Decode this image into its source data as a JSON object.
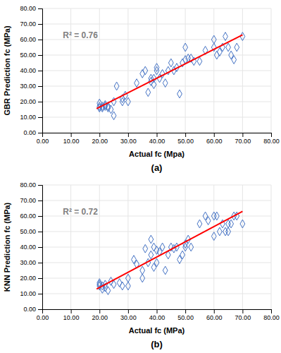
{
  "chart_data": [
    {
      "type": "scatter",
      "title": "(a)",
      "x_label": "Actual fc (Mpa)",
      "y_label": "GBR Prediction fc (MPa)",
      "annotations": [
        "R² = 0.76"
      ],
      "series": [
        {
          "type": "scatter",
          "marker": "diamond",
          "color": "#4472C4",
          "x": [
            20,
            20,
            20,
            21,
            21,
            22,
            22,
            23,
            23,
            24,
            25,
            25,
            26,
            28,
            28,
            29,
            30,
            33,
            35,
            36,
            37,
            38,
            38,
            39,
            39,
            40,
            40,
            41,
            42,
            43,
            44,
            45,
            46,
            47,
            48,
            49,
            50,
            50,
            51,
            52,
            53,
            55,
            57,
            60,
            60,
            61,
            62,
            63,
            64,
            65,
            66,
            67,
            68,
            70
          ],
          "values": [
            17,
            16,
            19,
            17,
            16,
            17,
            18,
            17,
            16,
            15,
            11,
            20,
            30,
            20,
            22,
            24,
            20,
            32,
            38,
            40,
            26,
            33,
            35,
            31,
            35,
            40,
            42,
            35,
            38,
            32,
            40,
            45,
            40,
            42,
            25,
            45,
            55,
            47,
            48,
            48,
            46,
            46,
            53,
            60,
            55,
            50,
            52,
            55,
            62,
            55,
            50,
            47,
            55,
            62
          ]
        },
        {
          "type": "line",
          "color": "#FF0000",
          "x": [
            19,
            70
          ],
          "values": [
            15.5,
            63
          ]
        }
      ],
      "xlim": [
        0,
        80
      ],
      "ylim": [
        0,
        80
      ],
      "xticks": [
        {
          "value": 0,
          "label": "0.00"
        },
        {
          "value": 10,
          "label": "10.00"
        },
        {
          "value": 20,
          "label": "20.00"
        },
        {
          "value": 30,
          "label": "30.00"
        },
        {
          "value": 40,
          "label": "40.00"
        },
        {
          "value": 50,
          "label": "50.00"
        },
        {
          "value": 60,
          "label": "60.00"
        },
        {
          "value": 70,
          "label": "70.00"
        },
        {
          "value": 80,
          "label": "80.00"
        }
      ],
      "yticks": [
        {
          "value": 0,
          "label": "0.00"
        },
        {
          "value": 10,
          "label": "10.00"
        },
        {
          "value": 20,
          "label": "20.00"
        },
        {
          "value": 30,
          "label": "30.00"
        },
        {
          "value": 40,
          "label": "40.00"
        },
        {
          "value": 50,
          "label": "50.00"
        },
        {
          "value": 60,
          "label": "60.00"
        },
        {
          "value": 70,
          "label": "70.00"
        },
        {
          "value": 80,
          "label": "80.00"
        }
      ],
      "grid": true
    },
    {
      "type": "scatter",
      "title": "(b)",
      "x_label": "Actual fc (MPa)",
      "y_label": "KNN Prediction fc (MPa)",
      "annotations": [
        "R² = 0.72"
      ],
      "series": [
        {
          "type": "scatter",
          "marker": "diamond",
          "color": "#4472C4",
          "x": [
            20,
            20,
            20,
            21,
            21,
            22,
            22,
            23,
            24,
            25,
            27,
            28,
            30,
            30,
            32,
            33,
            35,
            35,
            36,
            37,
            38,
            38,
            39,
            39,
            40,
            40,
            41,
            42,
            43,
            44,
            45,
            46,
            47,
            48,
            49,
            50,
            50,
            51,
            52,
            55,
            57,
            58,
            60,
            60,
            61,
            62,
            63,
            64,
            65,
            65,
            66,
            67,
            68,
            70
          ],
          "values": [
            16,
            15,
            17,
            15,
            13,
            14,
            16,
            12,
            18,
            16,
            17,
            15,
            15,
            20,
            32,
            29,
            25,
            20,
            39,
            30,
            45,
            35,
            40,
            27,
            38,
            30,
            37,
            40,
            25,
            35,
            40,
            39,
            40,
            32,
            35,
            42,
            40,
            45,
            40,
            55,
            60,
            57,
            60,
            47,
            60,
            50,
            55,
            50,
            50,
            55,
            55,
            60,
            60,
            55
          ]
        },
        {
          "type": "line",
          "color": "#FF0000",
          "x": [
            19,
            70
          ],
          "values": [
            13,
            63
          ]
        }
      ],
      "xlim": [
        0,
        80
      ],
      "ylim": [
        0,
        80
      ],
      "xticks": [
        {
          "value": 0,
          "label": "0.00"
        },
        {
          "value": 10,
          "label": "10.00"
        },
        {
          "value": 20,
          "label": "20.00"
        },
        {
          "value": 30,
          "label": "30.00"
        },
        {
          "value": 40,
          "label": "40.00"
        },
        {
          "value": 50,
          "label": "50.00"
        },
        {
          "value": 60,
          "label": "60.00"
        },
        {
          "value": 70,
          "label": "70.00"
        },
        {
          "value": 80,
          "label": "80.00"
        }
      ],
      "yticks": [
        {
          "value": 0,
          "label": "0.00"
        },
        {
          "value": 10,
          "label": "10.00"
        },
        {
          "value": 20,
          "label": "20.00"
        },
        {
          "value": 30,
          "label": "30.00"
        },
        {
          "value": 40,
          "label": "40.00"
        },
        {
          "value": 50,
          "label": "50.00"
        },
        {
          "value": 60,
          "label": "60.00"
        },
        {
          "value": 70,
          "label": "70.00"
        },
        {
          "value": 80,
          "label": "80.00"
        }
      ],
      "grid": true
    }
  ]
}
